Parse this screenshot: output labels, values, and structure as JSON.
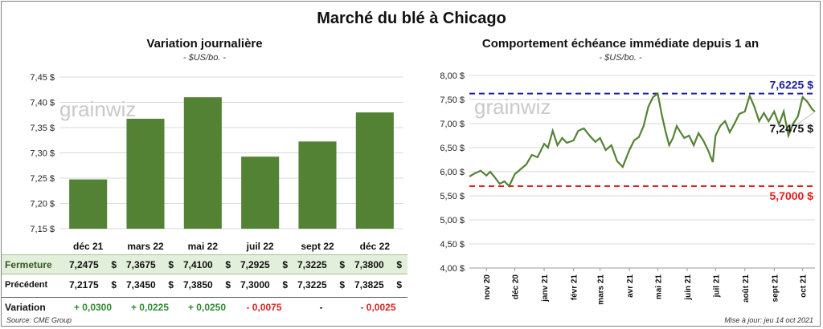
{
  "main_title": "Marché du blé à Chicago",
  "left": {
    "title": "Variation  journalière",
    "subtitle": "- $US/bo. -",
    "watermark": "grainwiz",
    "chart_data": {
      "type": "bar",
      "title": "Variation  journalière",
      "ylabel": "$US/bo.",
      "categories": [
        "déc 21",
        "mars 22",
        "mai 22",
        "juil 22",
        "sept 22",
        "déc 22"
      ],
      "values": [
        7.2475,
        7.3675,
        7.41,
        7.2925,
        7.3225,
        7.38
      ],
      "ylim": [
        7.15,
        7.45
      ],
      "yticks": [
        7.15,
        7.2,
        7.25,
        7.3,
        7.35,
        7.4,
        7.45
      ],
      "ytick_labels": [
        "7,15 $",
        "7,20 $",
        "7,25 $",
        "7,30 $",
        "7,35 $",
        "7,40 $",
        "7,45 $"
      ],
      "bar_color": "#548235",
      "grid": true
    },
    "table": {
      "rows": [
        {
          "label": "Fermeture",
          "values": [
            "7,2475",
            "7,3675",
            "7,4100",
            "7,2925",
            "7,3225",
            "7,3800"
          ],
          "unit": "$"
        },
        {
          "label": "Précédent",
          "values": [
            "7,2175",
            "7,3450",
            "7,3850",
            "7,3000",
            "7,3225",
            "7,3825"
          ],
          "unit": "$"
        },
        {
          "label": "Variation",
          "values": [
            "+ 0,0300",
            "+ 0,0225",
            "+ 0,0250",
            "- 0,0075",
            "-",
            "- 0,0025"
          ],
          "signs": [
            "pos",
            "pos",
            "pos",
            "neg",
            "neu",
            "neg"
          ]
        }
      ]
    }
  },
  "right": {
    "title": "Comportement  échéance immédiate depuis 1 an",
    "subtitle": "- $US/bo. -",
    "watermark": "grainwiz",
    "chart_data": {
      "type": "line",
      "title": "Comportement  échéance immédiate depuis 1 an",
      "ylabel": "$US/bo.",
      "ylim": [
        4.0,
        8.0
      ],
      "yticks": [
        4.0,
        4.5,
        5.0,
        5.5,
        6.0,
        6.5,
        7.0,
        7.5,
        8.0
      ],
      "ytick_labels": [
        "4,00 $",
        "4,50 $",
        "5,00 $",
        "5,50 $",
        "6,00 $",
        "6,50 $",
        "7,00 $",
        "7,50 $",
        "8,00 $"
      ],
      "x_start": "2020-10-14",
      "x_end": "2021-10-14",
      "xtick_labels": [
        "nov 20",
        "déc 20",
        "janv 21",
        "févr 21",
        "mars 21",
        "avr 21",
        "mai 21",
        "juin 21",
        "juil 21",
        "août 21",
        "sept 21",
        "oct 21"
      ],
      "xtick_dates": [
        "2020-11-01",
        "2020-12-01",
        "2021-01-01",
        "2021-02-01",
        "2021-03-01",
        "2021-04-01",
        "2021-05-01",
        "2021-06-01",
        "2021-07-01",
        "2021-08-01",
        "2021-09-01",
        "2021-10-01"
      ],
      "line_color": "#548235",
      "series": [
        {
          "name": "",
          "x": [
            "2020-10-14",
            "2020-10-20",
            "2020-10-26",
            "2020-11-01",
            "2020-11-05",
            "2020-11-10",
            "2020-11-15",
            "2020-11-20",
            "2020-11-25",
            "2020-12-01",
            "2020-12-07",
            "2020-12-13",
            "2020-12-19",
            "2020-12-25",
            "2021-01-01",
            "2021-01-05",
            "2021-01-10",
            "2021-01-15",
            "2021-01-20",
            "2021-01-25",
            "2021-02-01",
            "2021-02-06",
            "2021-02-12",
            "2021-02-18",
            "2021-02-24",
            "2021-03-01",
            "2021-03-07",
            "2021-03-13",
            "2021-03-19",
            "2021-03-25",
            "2021-04-01",
            "2021-04-06",
            "2021-04-11",
            "2021-04-16",
            "2021-04-21",
            "2021-04-26",
            "2021-05-01",
            "2021-05-05",
            "2021-05-09",
            "2021-05-13",
            "2021-05-17",
            "2021-05-21",
            "2021-05-25",
            "2021-05-29",
            "2021-06-03",
            "2021-06-08",
            "2021-06-13",
            "2021-06-18",
            "2021-06-23",
            "2021-06-28",
            "2021-07-01",
            "2021-07-06",
            "2021-07-11",
            "2021-07-16",
            "2021-07-21",
            "2021-07-26",
            "2021-08-01",
            "2021-08-06",
            "2021-08-11",
            "2021-08-16",
            "2021-08-21",
            "2021-08-26",
            "2021-09-01",
            "2021-09-06",
            "2021-09-11",
            "2021-09-16",
            "2021-09-21",
            "2021-09-26",
            "2021-10-01",
            "2021-10-06",
            "2021-10-11",
            "2021-10-14"
          ],
          "y": [
            5.9,
            5.97,
            6.02,
            5.92,
            6.0,
            5.88,
            5.75,
            5.8,
            5.7,
            5.95,
            6.05,
            6.15,
            6.35,
            6.3,
            6.58,
            6.5,
            6.85,
            6.55,
            6.7,
            6.6,
            6.65,
            6.85,
            6.9,
            6.75,
            6.62,
            6.7,
            6.45,
            6.55,
            6.22,
            6.1,
            6.45,
            6.65,
            6.72,
            6.95,
            7.35,
            7.55,
            7.62,
            7.2,
            6.85,
            6.55,
            6.7,
            6.95,
            6.82,
            6.7,
            6.75,
            6.55,
            6.8,
            6.65,
            6.45,
            6.2,
            6.75,
            6.95,
            7.05,
            6.82,
            7.0,
            7.2,
            7.25,
            7.58,
            7.35,
            7.05,
            7.22,
            7.05,
            7.25,
            6.98,
            7.25,
            6.75,
            7.0,
            7.15,
            7.55,
            7.45,
            7.3,
            7.2475
          ]
        }
      ],
      "hlines": [
        {
          "value": 7.6225,
          "label": "7,6225  $",
          "color": "#1f1fa0"
        },
        {
          "value": 5.7,
          "label": "5,7000  $",
          "color": "#e02020"
        }
      ],
      "last_label": "7,2475  $",
      "grid": true
    }
  },
  "footer": {
    "source": "Source: CME Group",
    "update": "Mise à jour: jeu 14 oct 2021"
  }
}
